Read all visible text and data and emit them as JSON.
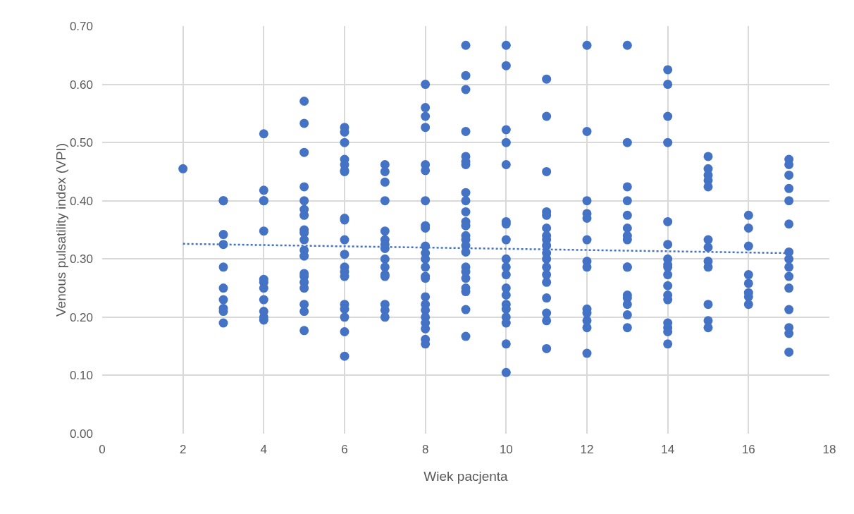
{
  "chart_data": {
    "type": "scatter",
    "xlabel": "Wiek pacjenta",
    "ylabel": "Venous pulsatility index (VPI)",
    "xlim": [
      0,
      18
    ],
    "xticks": [
      0,
      2,
      4,
      6,
      8,
      10,
      12,
      14,
      16,
      18
    ],
    "ylim": [
      0,
      0.7
    ],
    "yticks": [
      {
        "value": 0,
        "label": "0.00"
      },
      {
        "value": 0.1,
        "label": "0.10"
      },
      {
        "value": 0.2,
        "label": "0.20"
      },
      {
        "value": 0.3,
        "label": "0.30"
      },
      {
        "value": 0.4,
        "label": "0.40"
      },
      {
        "value": 0.5,
        "label": "0.50"
      },
      {
        "value": 0.6,
        "label": "0.60"
      },
      {
        "value": 0.7,
        "label": "0.70"
      }
    ],
    "grid": true,
    "series": [
      {
        "marker": "circle",
        "color": "#4472c4",
        "x": [
          2,
          3,
          3,
          3,
          3,
          3,
          3,
          3,
          3,
          3,
          3,
          4,
          4,
          4,
          4,
          4,
          4,
          4,
          4,
          4,
          4,
          4,
          4,
          5,
          5,
          5,
          5,
          5,
          5,
          5,
          5,
          5,
          5,
          5,
          5,
          5,
          5,
          5,
          5,
          5,
          5,
          5,
          6,
          6,
          6,
          6,
          6,
          6,
          6,
          6,
          6,
          6,
          6,
          6,
          6,
          6,
          6,
          6,
          6,
          6,
          6,
          7,
          7,
          7,
          7,
          7,
          7,
          7,
          7,
          7,
          7,
          7,
          7,
          7,
          7,
          7,
          8,
          8,
          8,
          8,
          8,
          8,
          8,
          8,
          8,
          8,
          8,
          8,
          8,
          8,
          8,
          8,
          8,
          8,
          8,
          8,
          8,
          8,
          8,
          9,
          9,
          9,
          9,
          9,
          9,
          9,
          9,
          9,
          9,
          9,
          9,
          9,
          9,
          9,
          9,
          9,
          9,
          9,
          9,
          9,
          9,
          9,
          10,
          10,
          10,
          10,
          10,
          10,
          10,
          10,
          10,
          10,
          10,
          10,
          10,
          10,
          10,
          10,
          10,
          10,
          10,
          11,
          11,
          11,
          11,
          11,
          11,
          11,
          11,
          11,
          11,
          11,
          11,
          11,
          11,
          11,
          11,
          11,
          11,
          12,
          12,
          12,
          12,
          12,
          12,
          12,
          12,
          12,
          12,
          12,
          12,
          12,
          13,
          13,
          13,
          13,
          13,
          13,
          13,
          13,
          13,
          13,
          13,
          13,
          13,
          13,
          13,
          14,
          14,
          14,
          14,
          14,
          14,
          14,
          14,
          14,
          14,
          14,
          14,
          14,
          14,
          14,
          14,
          14,
          15,
          15,
          15,
          15,
          15,
          15,
          15,
          15,
          15,
          15,
          15,
          15,
          16,
          16,
          16,
          16,
          16,
          16,
          16,
          16,
          17,
          17,
          17,
          17,
          17,
          17,
          17,
          17,
          17,
          17,
          17,
          17,
          17,
          17,
          17
        ],
        "values": [
          0.455,
          0.4,
          0.4,
          0.342,
          0.325,
          0.286,
          0.25,
          0.23,
          0.215,
          0.21,
          0.19,
          0.515,
          0.418,
          0.4,
          0.4,
          0.348,
          0.265,
          0.26,
          0.25,
          0.23,
          0.21,
          0.2,
          0.195,
          0.571,
          0.533,
          0.483,
          0.424,
          0.4,
          0.385,
          0.375,
          0.35,
          0.345,
          0.333,
          0.315,
          0.305,
          0.275,
          0.27,
          0.26,
          0.25,
          0.222,
          0.21,
          0.177,
          0.526,
          0.518,
          0.5,
          0.471,
          0.462,
          0.452,
          0.45,
          0.37,
          0.367,
          0.333,
          0.308,
          0.286,
          0.278,
          0.27,
          0.222,
          0.214,
          0.2,
          0.175,
          0.133,
          0.462,
          0.45,
          0.432,
          0.4,
          0.348,
          0.333,
          0.325,
          0.318,
          0.3,
          0.286,
          0.273,
          0.27,
          0.222,
          0.212,
          0.2,
          0.6,
          0.56,
          0.545,
          0.526,
          0.462,
          0.452,
          0.4,
          0.357,
          0.353,
          0.322,
          0.31,
          0.3,
          0.286,
          0.27,
          0.267,
          0.235,
          0.222,
          0.212,
          0.2,
          0.19,
          0.18,
          0.162,
          0.154,
          0.667,
          0.615,
          0.591,
          0.519,
          0.476,
          0.467,
          0.462,
          0.414,
          0.4,
          0.381,
          0.364,
          0.357,
          0.34,
          0.333,
          0.323,
          0.312,
          0.286,
          0.278,
          0.267,
          0.25,
          0.244,
          0.213,
          0.167,
          0.667,
          0.632,
          0.522,
          0.5,
          0.462,
          0.364,
          0.36,
          0.333,
          0.3,
          0.286,
          0.273,
          0.25,
          0.238,
          0.222,
          0.214,
          0.2,
          0.19,
          0.154,
          0.105,
          0.609,
          0.545,
          0.45,
          0.381,
          0.375,
          0.353,
          0.34,
          0.333,
          0.323,
          0.31,
          0.3,
          0.286,
          0.273,
          0.26,
          0.233,
          0.207,
          0.194,
          0.146,
          0.667,
          0.519,
          0.4,
          0.378,
          0.37,
          0.333,
          0.296,
          0.286,
          0.214,
          0.207,
          0.194,
          0.182,
          0.138,
          0.667,
          0.5,
          0.424,
          0.4,
          0.375,
          0.353,
          0.34,
          0.333,
          0.286,
          0.286,
          0.238,
          0.233,
          0.222,
          0.204,
          0.182,
          0.625,
          0.6,
          0.545,
          0.5,
          0.364,
          0.325,
          0.3,
          0.29,
          0.286,
          0.273,
          0.254,
          0.238,
          0.23,
          0.19,
          0.182,
          0.175,
          0.154,
          0.476,
          0.455,
          0.444,
          0.435,
          0.424,
          0.333,
          0.32,
          0.296,
          0.286,
          0.222,
          0.194,
          0.182,
          0.375,
          0.353,
          0.322,
          0.273,
          0.258,
          0.242,
          0.235,
          0.222,
          0.471,
          0.462,
          0.444,
          0.421,
          0.4,
          0.36,
          0.312,
          0.3,
          0.286,
          0.27,
          0.25,
          0.213,
          0.182,
          0.172,
          0.14
        ]
      },
      {
        "type": "line",
        "color": "#4472c4",
        "line_style": "dotted",
        "x": [
          2,
          17
        ],
        "values": [
          0.326,
          0.31
        ]
      }
    ]
  }
}
